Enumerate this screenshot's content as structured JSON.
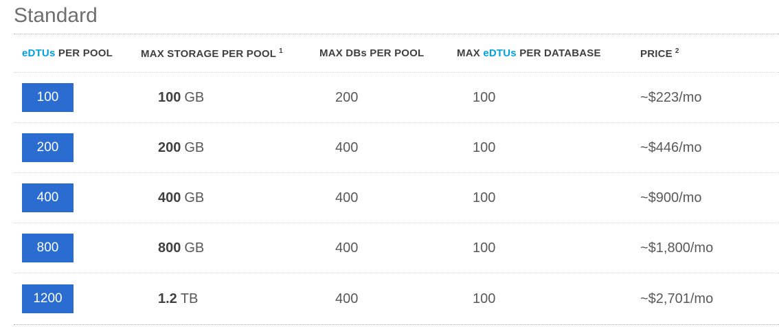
{
  "title": "Standard",
  "colors": {
    "accent_blue": "#00a1e0",
    "button_blue": "#2b6cd0",
    "header_text": "#3f3f3f",
    "value_text": "#595959",
    "title_text": "#6e6e6e"
  },
  "table": {
    "headers": [
      {
        "pre": "",
        "accent": "eDTUs",
        "post": " PER POOL",
        "sup": ""
      },
      {
        "pre": "MAX STORAGE PER POOL",
        "accent": "",
        "post": "",
        "sup": "1"
      },
      {
        "pre": "MAX DBs PER POOL",
        "accent": "",
        "post": "",
        "sup": ""
      },
      {
        "pre": "MAX ",
        "accent": "eDTUs",
        "post": " PER DATABASE",
        "sup": ""
      },
      {
        "pre": "PRICE",
        "accent": "",
        "post": "",
        "sup": "2"
      }
    ],
    "rows": [
      {
        "pool_edtus": "100",
        "storage_value": "100",
        "storage_unit": "GB",
        "max_dbs": "200",
        "max_edtus_per_db": "100",
        "price": "~$223/mo"
      },
      {
        "pool_edtus": "200",
        "storage_value": "200",
        "storage_unit": "GB",
        "max_dbs": "400",
        "max_edtus_per_db": "100",
        "price": "~$446/mo"
      },
      {
        "pool_edtus": "400",
        "storage_value": "400",
        "storage_unit": "GB",
        "max_dbs": "400",
        "max_edtus_per_db": "100",
        "price": "~$900/mo"
      },
      {
        "pool_edtus": "800",
        "storage_value": "800",
        "storage_unit": "GB",
        "max_dbs": "400",
        "max_edtus_per_db": "100",
        "price": "~$1,800/mo"
      },
      {
        "pool_edtus": "1200",
        "storage_value": "1.2",
        "storage_unit": "TB",
        "max_dbs": "400",
        "max_edtus_per_db": "100",
        "price": "~$2,701/mo"
      }
    ]
  }
}
